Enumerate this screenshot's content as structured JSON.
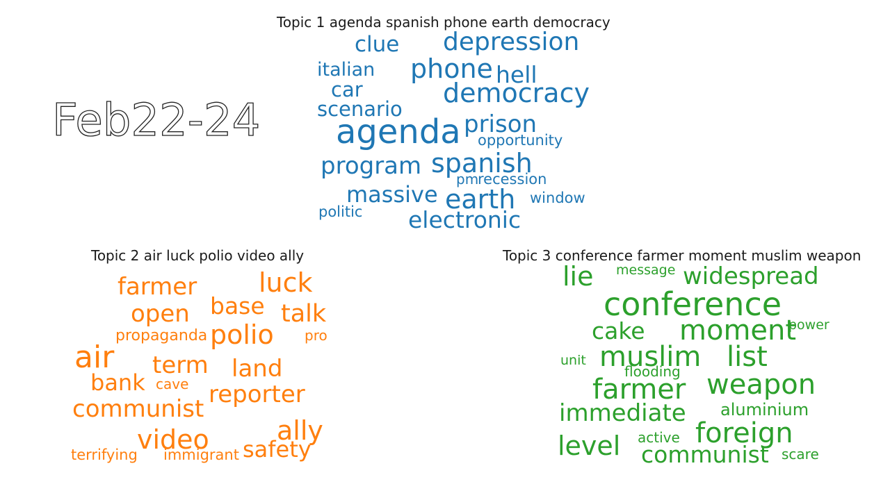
{
  "date_label": "Feb22-24",
  "chart_data": [
    {
      "type": "wordcloud",
      "title": "Topic 1 agenda spanish phone earth democracy",
      "color": "#1f77b4",
      "words": [
        {
          "text": "agenda",
          "weight": 48
        },
        {
          "text": "democracy",
          "weight": 38
        },
        {
          "text": "depression",
          "weight": 36
        },
        {
          "text": "phone",
          "weight": 38
        },
        {
          "text": "spanish",
          "weight": 38
        },
        {
          "text": "earth",
          "weight": 38
        },
        {
          "text": "prison",
          "weight": 34
        },
        {
          "text": "program",
          "weight": 34
        },
        {
          "text": "electronic",
          "weight": 33
        },
        {
          "text": "hell",
          "weight": 33
        },
        {
          "text": "massive",
          "weight": 32
        },
        {
          "text": "clue",
          "weight": 31
        },
        {
          "text": "scenario",
          "weight": 29
        },
        {
          "text": "car",
          "weight": 29
        },
        {
          "text": "italian",
          "weight": 27
        },
        {
          "text": "opportunity",
          "weight": 21
        },
        {
          "text": "recession",
          "weight": 21
        },
        {
          "text": "window",
          "weight": 21
        },
        {
          "text": "pm",
          "weight": 20
        },
        {
          "text": "politic",
          "weight": 21
        }
      ]
    },
    {
      "type": "wordcloud",
      "title": "Topic 2 air luck polio video ally",
      "color": "#ff7f0e",
      "words": [
        {
          "text": "air",
          "weight": 44
        },
        {
          "text": "luck",
          "weight": 38
        },
        {
          "text": "polio",
          "weight": 38
        },
        {
          "text": "video",
          "weight": 38
        },
        {
          "text": "ally",
          "weight": 38
        },
        {
          "text": "talk",
          "weight": 35
        },
        {
          "text": "farmer",
          "weight": 34
        },
        {
          "text": "base",
          "weight": 33
        },
        {
          "text": "open",
          "weight": 34
        },
        {
          "text": "term",
          "weight": 34
        },
        {
          "text": "land",
          "weight": 34
        },
        {
          "text": "reporter",
          "weight": 34
        },
        {
          "text": "communist",
          "weight": 34
        },
        {
          "text": "bank",
          "weight": 32
        },
        {
          "text": "safety",
          "weight": 32
        },
        {
          "text": "propaganda",
          "weight": 22
        },
        {
          "text": "pro",
          "weight": 20
        },
        {
          "text": "cave",
          "weight": 20
        },
        {
          "text": "terrifying",
          "weight": 21
        },
        {
          "text": "immigrant",
          "weight": 21
        }
      ]
    },
    {
      "type": "wordcloud",
      "title": "Topic 3 conference farmer moment muslim weapon",
      "color": "#2ca02c",
      "words": [
        {
          "text": "conference",
          "weight": 46
        },
        {
          "text": "moment",
          "weight": 40
        },
        {
          "text": "muslim",
          "weight": 40
        },
        {
          "text": "list",
          "weight": 40
        },
        {
          "text": "farmer",
          "weight": 40
        },
        {
          "text": "weapon",
          "weight": 40
        },
        {
          "text": "foreign",
          "weight": 40
        },
        {
          "text": "lie",
          "weight": 38
        },
        {
          "text": "widespread",
          "weight": 34
        },
        {
          "text": "cake",
          "weight": 33
        },
        {
          "text": "immediate",
          "weight": 34
        },
        {
          "text": "level",
          "weight": 38
        },
        {
          "text": "communist",
          "weight": 33
        },
        {
          "text": "aluminium",
          "weight": 24
        },
        {
          "text": "message",
          "weight": 19
        },
        {
          "text": "power",
          "weight": 19
        },
        {
          "text": "unit",
          "weight": 19
        },
        {
          "text": "flooding",
          "weight": 20
        },
        {
          "text": "active",
          "weight": 20
        },
        {
          "text": "scare",
          "weight": 20
        }
      ]
    }
  ]
}
